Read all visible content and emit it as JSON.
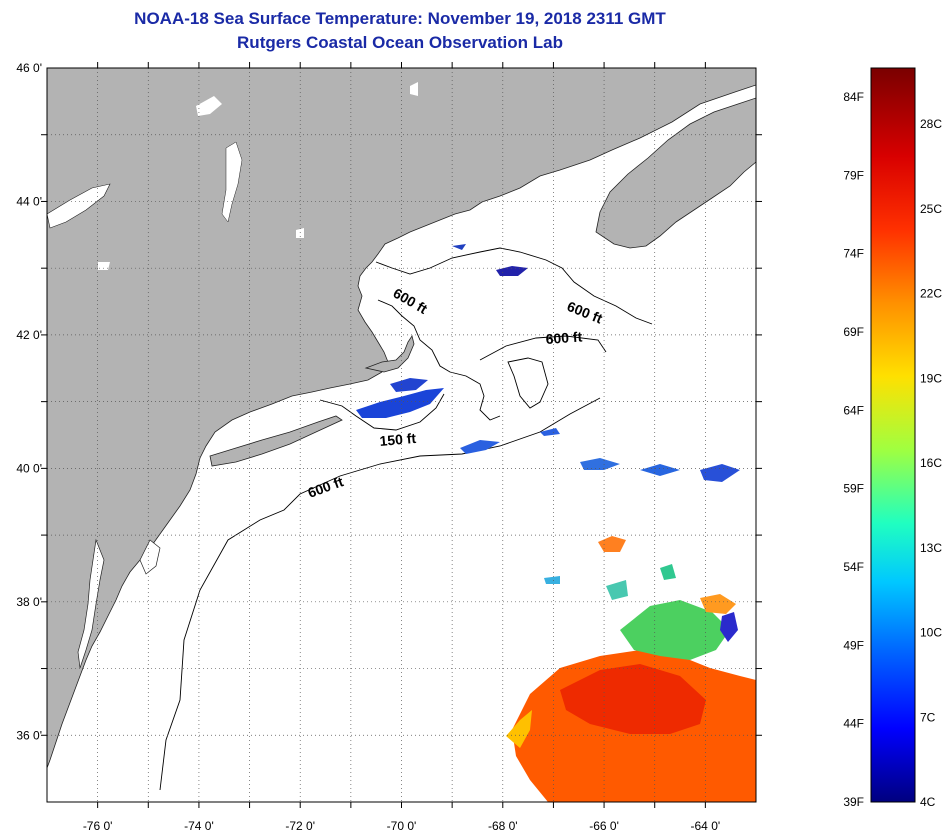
{
  "header": {
    "title_line1": "NOAA-18 Sea Surface Temperature:  November 19, 2018 2311 GMT",
    "title_line2": "Rutgers Coastal Ocean Observation Lab"
  },
  "map": {
    "lon_range": [
      -77,
      -63
    ],
    "lat_range": [
      35,
      46
    ],
    "lon_ticks": [
      {
        "value": -76,
        "label": "-76 0'"
      },
      {
        "value": -74,
        "label": "-74 0'"
      },
      {
        "value": -72,
        "label": "-72 0'"
      },
      {
        "value": -70,
        "label": "-70 0'"
      },
      {
        "value": -68,
        "label": "-68 0'"
      },
      {
        "value": -66,
        "label": "-66 0'"
      },
      {
        "value": -64,
        "label": "-64 0'"
      }
    ],
    "lat_ticks": [
      {
        "value": 46,
        "label": "46 0'"
      },
      {
        "value": 44,
        "label": "44 0'"
      },
      {
        "value": 42,
        "label": "42 0'"
      },
      {
        "value": 40,
        "label": "40 0'"
      },
      {
        "value": 38,
        "label": "38 0'"
      },
      {
        "value": 36,
        "label": "36 0'"
      }
    ],
    "contour_labels": {
      "gom_600": "600 ft",
      "ne_600": "600 ft",
      "gb_600": "600 ft",
      "nantucket_150": "150 ft",
      "shelf_600": "600 ft"
    },
    "land_color": "#b3b3b3",
    "water_color": "#ffffff",
    "grid": true
  },
  "colorbar": {
    "fahrenheit_labels": [
      "84F",
      "79F",
      "74F",
      "69F",
      "64F",
      "59F",
      "54F",
      "49F",
      "44F",
      "39F"
    ],
    "celsius_labels": [
      "28C",
      "25C",
      "22C",
      "19C",
      "16C",
      "13C",
      "10C",
      "7C",
      "4C"
    ],
    "range_c": [
      4,
      30
    ],
    "colors": [
      "#00008f",
      "#0000ff",
      "#0080ff",
      "#00ffff",
      "#80ff80",
      "#ffff00",
      "#ff8000",
      "#ff0000",
      "#800000"
    ]
  }
}
